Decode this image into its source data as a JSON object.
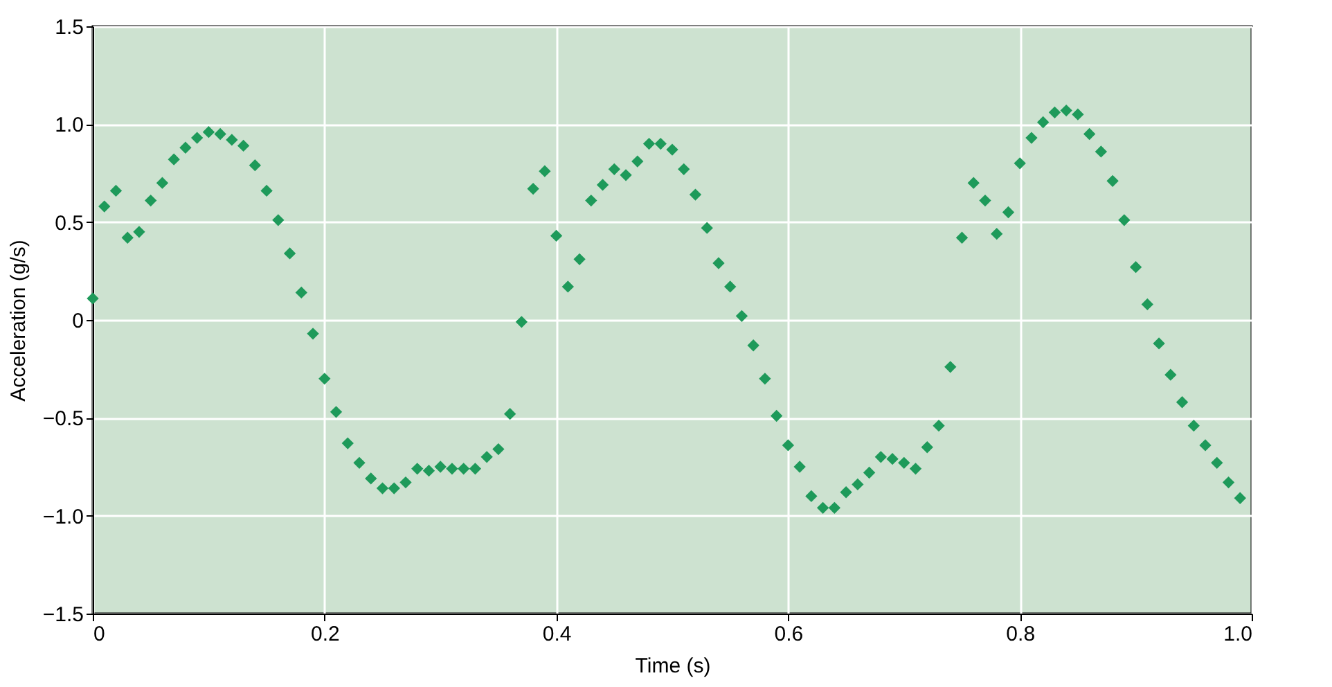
{
  "chart_data": {
    "type": "scatter",
    "xlabel": "Time (s)",
    "ylabel": "Acceleration (g/s)",
    "x": [
      0,
      0.01,
      0.02,
      0.03,
      0.04,
      0.05,
      0.06,
      0.07,
      0.08,
      0.09,
      0.1,
      0.11,
      0.12,
      0.13,
      0.14,
      0.15,
      0.16,
      0.17,
      0.18,
      0.19,
      0.2,
      0.21,
      0.22,
      0.23,
      0.24,
      0.25,
      0.26,
      0.27,
      0.28,
      0.29,
      0.3,
      0.31,
      0.32,
      0.33,
      0.34,
      0.35,
      0.36,
      0.37,
      0.38,
      0.39,
      0.4,
      0.41,
      0.42,
      0.43,
      0.44,
      0.45,
      0.46,
      0.47,
      0.48,
      0.49,
      0.5,
      0.51,
      0.52,
      0.53,
      0.54,
      0.55,
      0.56,
      0.57,
      0.58,
      0.59,
      0.6,
      0.61,
      0.62,
      0.63,
      0.64,
      0.65,
      0.66,
      0.67,
      0.68,
      0.69,
      0.7,
      0.71,
      0.72,
      0.73,
      0.74,
      0.75,
      0.76,
      0.77,
      0.78,
      0.79,
      0.8,
      0.81,
      0.82,
      0.83,
      0.84,
      0.85,
      0.86,
      0.87,
      0.88,
      0.89,
      0.9,
      0.91,
      0.92,
      0.93,
      0.94,
      0.95,
      0.96,
      0.97,
      0.98,
      0.99
    ],
    "series": [
      {
        "color": "#1e9a5a",
        "values": [
          0.11,
          0.58,
          0.66,
          0.42,
          0.45,
          0.61,
          0.7,
          0.82,
          0.88,
          0.93,
          0.96,
          0.95,
          0.92,
          0.89,
          0.79,
          0.66,
          0.51,
          0.34,
          0.14,
          -0.07,
          -0.3,
          -0.47,
          -0.63,
          -0.73,
          -0.81,
          -0.86,
          -0.86,
          -0.83,
          -0.76,
          -0.77,
          -0.75,
          -0.76,
          -0.76,
          -0.76,
          -0.7,
          -0.66,
          -0.48,
          -0.01,
          0.67,
          0.76,
          0.43,
          0.17,
          0.31,
          0.61,
          0.69,
          0.77,
          0.74,
          0.81,
          0.9,
          0.9,
          0.87,
          0.77,
          0.64,
          0.47,
          0.29,
          0.17,
          0.02,
          -0.13,
          -0.3,
          -0.49,
          -0.64,
          -0.75,
          -0.9,
          -0.96,
          -0.96,
          -0.88,
          -0.84,
          -0.78,
          -0.7,
          -0.71,
          -0.73,
          -0.76,
          -0.65,
          -0.54,
          -0.24,
          0.42,
          0.7,
          0.61,
          0.44,
          0.55,
          0.8,
          0.93,
          1.01,
          1.06,
          1.07,
          1.05,
          0.95,
          0.86,
          0.71,
          0.51,
          0.27,
          0.08,
          -0.12,
          -0.28,
          -0.42,
          -0.54,
          -0.64,
          -0.73,
          -0.83,
          -0.91
        ]
      }
    ],
    "xlim": [
      0,
      1.0
    ],
    "xticks": [
      0,
      0.2,
      0.4,
      0.6,
      0.8,
      {
        "value": 1.0,
        "label": "1.0"
      }
    ],
    "ylim": [
      -1.5,
      1.5
    ],
    "yticks": [
      {
        "value": -1.5,
        "label": "−1.5"
      },
      {
        "value": -1.0,
        "label": "−1.0"
      },
      {
        "value": -0.5,
        "label": "−0.5"
      },
      0,
      0.5,
      {
        "value": 1.0,
        "label": "1.0"
      },
      1.5
    ],
    "grid": true,
    "marker": "diamond"
  }
}
